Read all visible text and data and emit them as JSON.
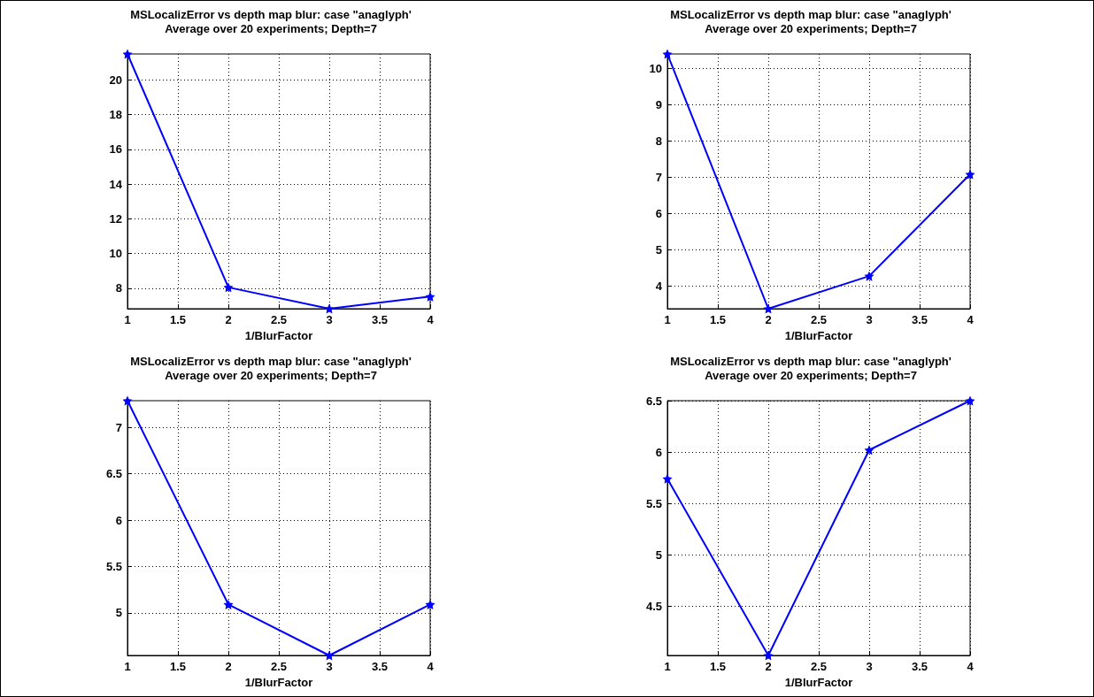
{
  "chart_data": [
    {
      "type": "line",
      "title": "MSLocalizError vs depth map blur: case \"anaglyph'",
      "subtitle": "Average over 20 experiments; Depth=7",
      "xlabel": "1/BlurFactor",
      "x": [
        1,
        2,
        3,
        4
      ],
      "series": [
        {
          "color": "#0000ff",
          "values": [
            21.5,
            8.05,
            6.82,
            7.52
          ]
        }
      ],
      "xlim": [
        1,
        4
      ],
      "xticks": [
        1,
        1.5,
        2,
        2.5,
        3,
        3.5,
        4
      ],
      "ylim": [
        6.82,
        21.5
      ],
      "yticks": [
        8,
        10,
        12,
        14,
        16,
        18,
        20
      ],
      "grid": true,
      "marker": "star",
      "line_style": "solid"
    },
    {
      "type": "line",
      "title": "MSLocalizError vs depth map blur: case \"anaglyph'",
      "subtitle": "Average over 20 experiments; Depth=7",
      "xlabel": "1/BlurFactor",
      "x": [
        1,
        2,
        3,
        4
      ],
      "series": [
        {
          "color": "#0000ff",
          "values": [
            10.4,
            3.37,
            4.27,
            7.08
          ]
        }
      ],
      "xlim": [
        1,
        4
      ],
      "xticks": [
        1,
        1.5,
        2,
        2.5,
        3,
        3.5,
        4
      ],
      "ylim": [
        3.37,
        10.4
      ],
      "yticks": [
        4,
        5,
        6,
        7,
        8,
        9,
        10
      ],
      "grid": true,
      "marker": "star",
      "line_style": "solid"
    },
    {
      "type": "line",
      "title": "MSLocalizError vs depth map blur: case \"anaglyph'",
      "subtitle": "Average over 20 experiments; Depth=7",
      "xlabel": "1/BlurFactor",
      "x": [
        1,
        2,
        3,
        4
      ],
      "series": [
        {
          "color": "#0000ff",
          "values": [
            7.29,
            5.09,
            4.54,
            5.09
          ]
        }
      ],
      "xlim": [
        1,
        4
      ],
      "xticks": [
        1,
        1.5,
        2,
        2.5,
        3,
        3.5,
        4
      ],
      "ylim": [
        4.54,
        7.29
      ],
      "yticks": [
        5,
        5.5,
        6,
        6.5,
        7
      ],
      "grid": true,
      "marker": "star",
      "line_style": "solid"
    },
    {
      "type": "line",
      "title": "MSLocalizError vs depth map blur: case \"anaglyph'",
      "subtitle": "Average over 20 experiments; Depth=7",
      "xlabel": "1/BlurFactor",
      "x": [
        1,
        2,
        3,
        4
      ],
      "series": [
        {
          "color": "#0000ff",
          "values": [
            5.74,
            4.02,
            6.02,
            6.5
          ]
        }
      ],
      "xlim": [
        1,
        4
      ],
      "xticks": [
        1,
        1.5,
        2,
        2.5,
        3,
        3.5,
        4
      ],
      "ylim": [
        4.02,
        6.5
      ],
      "yticks": [
        4.5,
        5,
        5.5,
        6,
        6.5
      ],
      "grid": true,
      "marker": "star",
      "line_style": "solid"
    }
  ]
}
